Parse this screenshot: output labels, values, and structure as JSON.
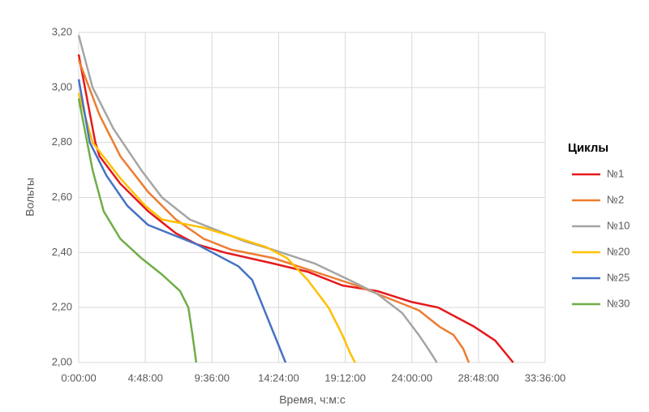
{
  "chart_data": {
    "type": "line",
    "xlabel": "Время, ч:м:с",
    "ylabel": "Вольты",
    "legend_title": "Циклы",
    "legend": "right",
    "grid": true,
    "xlim": [
      0,
      33.6
    ],
    "xticks": [
      {
        "value": 0,
        "label": "0:00:00"
      },
      {
        "value": 4.8,
        "label": "4:48:00"
      },
      {
        "value": 9.6,
        "label": "9:36:00"
      },
      {
        "value": 14.4,
        "label": "14:24:00"
      },
      {
        "value": 19.2,
        "label": "19:12:00"
      },
      {
        "value": 24,
        "label": "24:00:00"
      },
      {
        "value": 28.8,
        "label": "28:48:00"
      },
      {
        "value": 33.6,
        "label": "33:36:00"
      }
    ],
    "ylim": [
      2,
      3.2
    ],
    "yticks": [
      {
        "value": 2,
        "label": "2,00"
      },
      {
        "value": 2.2,
        "label": "2,20"
      },
      {
        "value": 2.4,
        "label": "2,40"
      },
      {
        "value": 2.6,
        "label": "2,60"
      },
      {
        "value": 2.8,
        "label": "2,80"
      },
      {
        "value": 3,
        "label": "3,00"
      },
      {
        "value": 3.2,
        "label": "3,20"
      }
    ],
    "series": [
      {
        "name": "№1",
        "color": "#e5191c",
        "x": [
          0,
          1.2,
          1.5,
          3,
          5,
          7,
          8.5,
          10.5,
          14,
          16.5,
          19,
          21.5,
          24,
          25.9,
          28.5,
          30,
          31.3
        ],
        "values": [
          3.12,
          2.8,
          2.75,
          2.65,
          2.55,
          2.47,
          2.43,
          2.4,
          2.36,
          2.33,
          2.28,
          2.26,
          2.22,
          2.2,
          2.13,
          2.08,
          2.0
        ]
      },
      {
        "name": "№2",
        "color": "#ed7d31",
        "x": [
          0,
          1.5,
          3,
          5,
          7,
          9,
          11,
          14,
          17,
          20,
          22,
          24.5,
          26,
          27,
          27.7,
          28.1
        ],
        "values": [
          3.1,
          2.9,
          2.75,
          2.62,
          2.52,
          2.45,
          2.41,
          2.38,
          2.33,
          2.28,
          2.24,
          2.19,
          2.13,
          2.1,
          2.05,
          2.0
        ]
      },
      {
        "name": "№10",
        "color": "#a5a5a5",
        "x": [
          0,
          1,
          2.5,
          4.5,
          6,
          8,
          10,
          12,
          14,
          17,
          19.5,
          21.5,
          23.3,
          24.5,
          25.3,
          25.8
        ],
        "values": [
          3.19,
          3.0,
          2.85,
          2.7,
          2.6,
          2.52,
          2.48,
          2.44,
          2.41,
          2.36,
          2.3,
          2.25,
          2.18,
          2.1,
          2.04,
          2.0
        ]
      },
      {
        "name": "№20",
        "color": "#ffc000",
        "x": [
          0,
          1,
          3,
          4.8,
          6,
          9,
          11,
          13.5,
          15,
          16.5,
          18,
          19,
          19.5,
          19.9
        ],
        "values": [
          2.98,
          2.8,
          2.67,
          2.57,
          2.52,
          2.49,
          2.46,
          2.42,
          2.38,
          2.3,
          2.2,
          2.1,
          2.04,
          2.0
        ]
      },
      {
        "name": "№25",
        "color": "#4472c4",
        "x": [
          0,
          0.8,
          2,
          3.5,
          5,
          7,
          8.5,
          10,
          11.5,
          12.5,
          13.3,
          14.1,
          14.9
        ],
        "values": [
          3.03,
          2.8,
          2.68,
          2.57,
          2.5,
          2.46,
          2.43,
          2.39,
          2.35,
          2.3,
          2.2,
          2.1,
          2.0
        ]
      },
      {
        "name": "№30",
        "color": "#70ad47",
        "x": [
          0,
          1,
          1.8,
          3,
          4.5,
          6,
          7.3,
          7.9,
          8.2,
          8.47
        ],
        "values": [
          2.96,
          2.7,
          2.55,
          2.45,
          2.38,
          2.32,
          2.26,
          2.2,
          2.1,
          2.0
        ]
      }
    ]
  }
}
